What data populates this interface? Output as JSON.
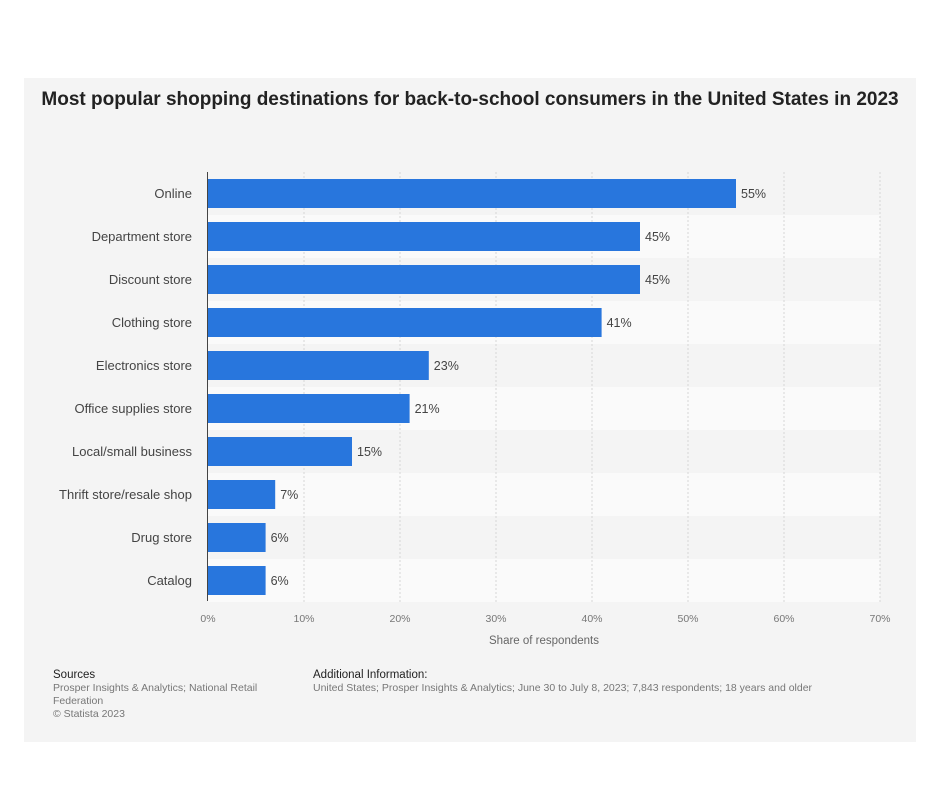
{
  "chart_data": {
    "type": "bar",
    "orientation": "horizontal",
    "title": "Most popular shopping destinations for back-to-school consumers in the United States in 2023",
    "categories": [
      "Online",
      "Department store",
      "Discount store",
      "Clothing store",
      "Electronics store",
      "Office supplies store",
      "Local/small business",
      "Thrift store/resale shop",
      "Drug  store",
      "Catalog"
    ],
    "values": [
      55,
      45,
      45,
      41,
      23,
      21,
      15,
      7,
      6,
      6
    ],
    "value_labels": [
      "55%",
      "45%",
      "45%",
      "41%",
      "23%",
      "21%",
      "15%",
      "7%",
      "6%",
      "6%"
    ],
    "xlabel": "Share of respondents",
    "ylabel": "",
    "xlim": [
      0,
      70
    ],
    "ticks": [
      "0%",
      "10%",
      "20%",
      "30%",
      "40%",
      "50%",
      "60%",
      "70%"
    ],
    "grid": true,
    "bar_color": "#2876dd"
  },
  "footer": {
    "sources_heading": "Sources",
    "sources_text": "Prosper Insights & Analytics; National Retail Federation",
    "copyright": "© Statista 2023",
    "additional_heading": "Additional Information:",
    "additional_text": "United States; Prosper Insights & Analytics; June 30 to July 8, 2023; 7,843 respondents; 18 years and older"
  }
}
